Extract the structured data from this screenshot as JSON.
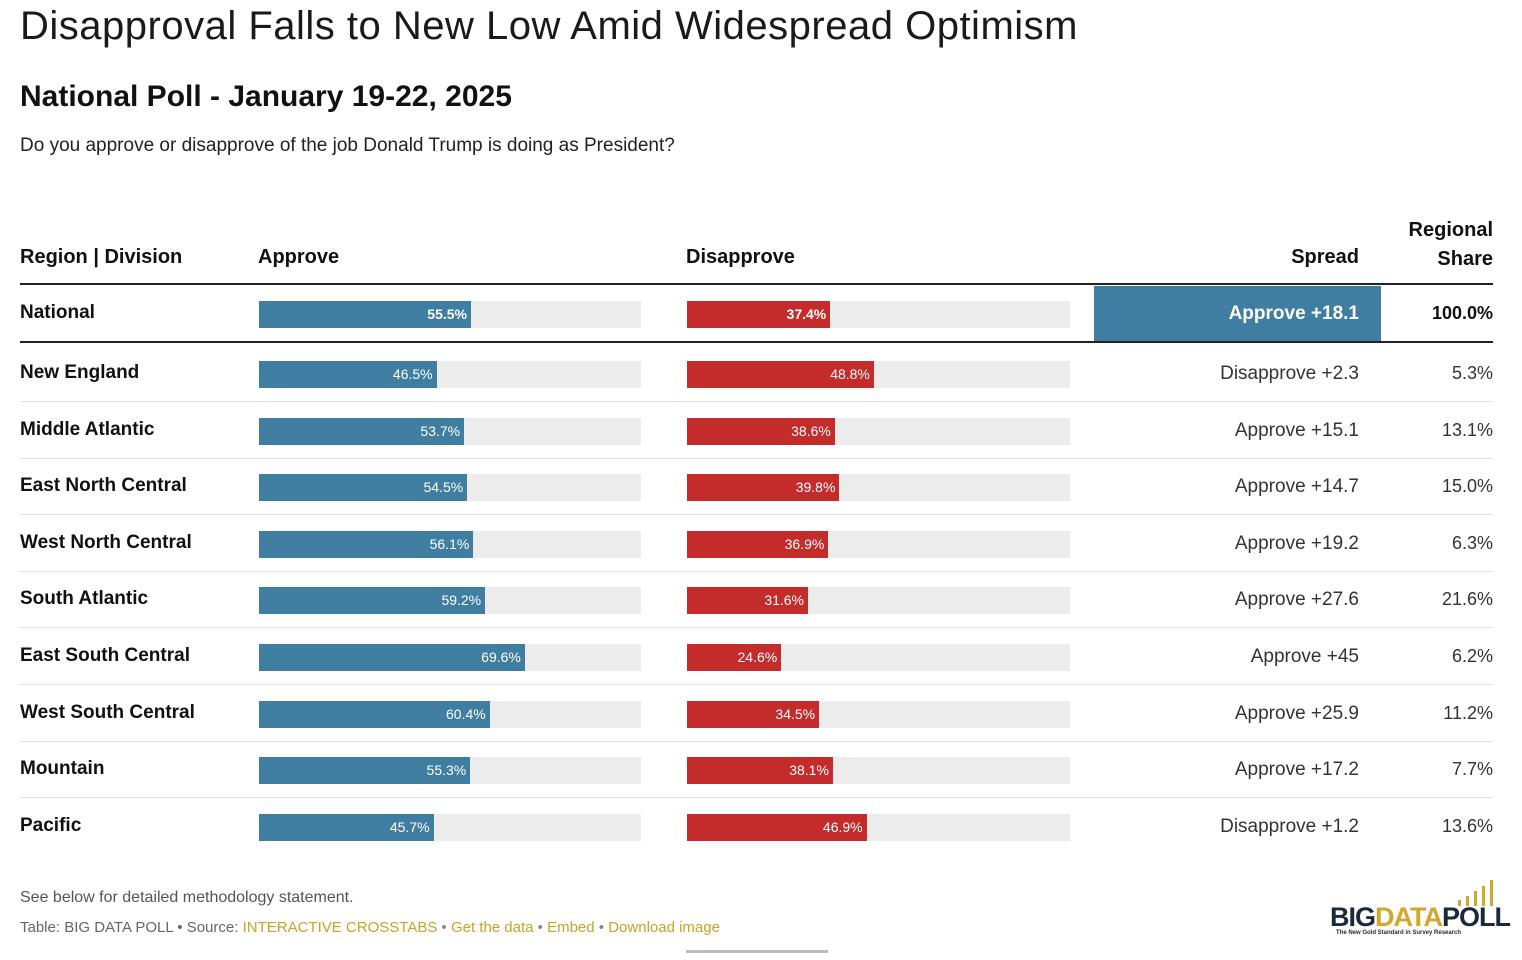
{
  "title": "Disapproval Falls to New Low Amid Widespread Optimism",
  "subtitle": "National Poll - January 19-22, 2025",
  "question": "Do you approve or disapprove of the job Donald Trump is doing as President?",
  "headers": {
    "region": "Region | Division",
    "approve": "Approve",
    "disapprove": "Disapprove",
    "spread": "Spread",
    "share_line1": "Regional",
    "share_line2": "Share"
  },
  "colors": {
    "approve": "#3f7ea1",
    "disapprove": "#c42b2b",
    "track": "#ececec",
    "link": "#c9a227"
  },
  "chart_data": {
    "type": "bar",
    "xlim": [
      0,
      100
    ],
    "rows": [
      {
        "region": "National",
        "approve": 55.5,
        "approve_label": "55.5%",
        "disapprove": 37.4,
        "disapprove_label": "37.4%",
        "spread": "Approve +18.1",
        "share": "100.0%"
      },
      {
        "region": "New England",
        "approve": 46.5,
        "approve_label": "46.5%",
        "disapprove": 48.8,
        "disapprove_label": "48.8%",
        "spread": "Disapprove +2.3",
        "share": "5.3%"
      },
      {
        "region": "Middle Atlantic",
        "approve": 53.7,
        "approve_label": "53.7%",
        "disapprove": 38.6,
        "disapprove_label": "38.6%",
        "spread": "Approve +15.1",
        "share": "13.1%"
      },
      {
        "region": "East North Central",
        "approve": 54.5,
        "approve_label": "54.5%",
        "disapprove": 39.8,
        "disapprove_label": "39.8%",
        "spread": "Approve +14.7",
        "share": "15.0%"
      },
      {
        "region": "West North Central",
        "approve": 56.1,
        "approve_label": "56.1%",
        "disapprove": 36.9,
        "disapprove_label": "36.9%",
        "spread": "Approve +19.2",
        "share": "6.3%"
      },
      {
        "region": "South Atlantic",
        "approve": 59.2,
        "approve_label": "59.2%",
        "disapprove": 31.6,
        "disapprove_label": "31.6%",
        "spread": "Approve +27.6",
        "share": "21.6%"
      },
      {
        "region": "East South Central",
        "approve": 69.6,
        "approve_label": "69.6%",
        "disapprove": 24.6,
        "disapprove_label": "24.6%",
        "spread": "Approve +45",
        "share": "6.2%"
      },
      {
        "region": "West South Central",
        "approve": 60.4,
        "approve_label": "60.4%",
        "disapprove": 34.5,
        "disapprove_label": "34.5%",
        "spread": "Approve +25.9",
        "share": "11.2%"
      },
      {
        "region": "Mountain",
        "approve": 55.3,
        "approve_label": "55.3%",
        "disapprove": 38.1,
        "disapprove_label": "38.1%",
        "spread": "Approve +17.2",
        "share": "7.7%"
      },
      {
        "region": "Pacific",
        "approve": 45.7,
        "approve_label": "45.7%",
        "disapprove": 46.9,
        "disapprove_label": "46.9%",
        "spread": "Disapprove +1.2",
        "share": "13.6%"
      }
    ]
  },
  "footer": {
    "note": "See below for detailed methodology statement.",
    "source_prefix": "Table: BIG DATA POLL • Source: ",
    "source_link": "INTERACTIVE CROSSTABS",
    "sep1": " • ",
    "get_data": "Get the data",
    "sep2": " • ",
    "embed": "Embed",
    "sep3": " • ",
    "download": "Download image"
  },
  "logo": {
    "big": "BIG",
    "data": "DATA",
    "poll": "POLL",
    "tagline": "The New Gold Standard in Survey Research"
  }
}
